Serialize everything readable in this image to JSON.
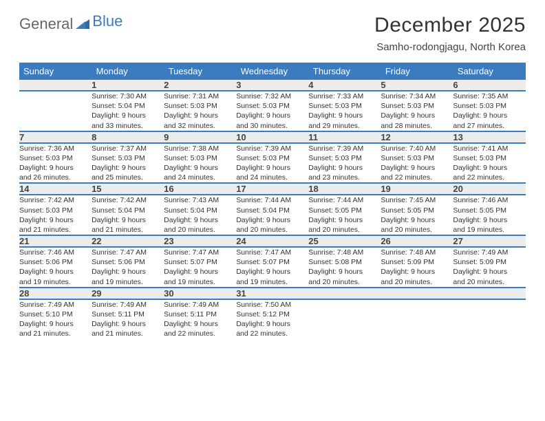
{
  "brand": {
    "word1": "General",
    "word2": "Blue"
  },
  "title": "December 2025",
  "location": "Samho-rodongjagu, North Korea",
  "colors": {
    "header_bg": "#3b7bbf",
    "header_text": "#ffffff",
    "daynum_bg": "#ececec",
    "rule": "#3b7bbf",
    "logo_blue": "#3b7bbf",
    "logo_gray": "#666"
  },
  "weekdays": [
    "Sunday",
    "Monday",
    "Tuesday",
    "Wednesday",
    "Thursday",
    "Friday",
    "Saturday"
  ],
  "weeks": [
    {
      "nums": [
        "",
        "1",
        "2",
        "3",
        "4",
        "5",
        "6"
      ],
      "cells": [
        null,
        {
          "sunrise": "Sunrise: 7:30 AM",
          "sunset": "Sunset: 5:04 PM",
          "day1": "Daylight: 9 hours",
          "day2": "and 33 minutes."
        },
        {
          "sunrise": "Sunrise: 7:31 AM",
          "sunset": "Sunset: 5:03 PM",
          "day1": "Daylight: 9 hours",
          "day2": "and 32 minutes."
        },
        {
          "sunrise": "Sunrise: 7:32 AM",
          "sunset": "Sunset: 5:03 PM",
          "day1": "Daylight: 9 hours",
          "day2": "and 30 minutes."
        },
        {
          "sunrise": "Sunrise: 7:33 AM",
          "sunset": "Sunset: 5:03 PM",
          "day1": "Daylight: 9 hours",
          "day2": "and 29 minutes."
        },
        {
          "sunrise": "Sunrise: 7:34 AM",
          "sunset": "Sunset: 5:03 PM",
          "day1": "Daylight: 9 hours",
          "day2": "and 28 minutes."
        },
        {
          "sunrise": "Sunrise: 7:35 AM",
          "sunset": "Sunset: 5:03 PM",
          "day1": "Daylight: 9 hours",
          "day2": "and 27 minutes."
        }
      ]
    },
    {
      "nums": [
        "7",
        "8",
        "9",
        "10",
        "11",
        "12",
        "13"
      ],
      "cells": [
        {
          "sunrise": "Sunrise: 7:36 AM",
          "sunset": "Sunset: 5:03 PM",
          "day1": "Daylight: 9 hours",
          "day2": "and 26 minutes."
        },
        {
          "sunrise": "Sunrise: 7:37 AM",
          "sunset": "Sunset: 5:03 PM",
          "day1": "Daylight: 9 hours",
          "day2": "and 25 minutes."
        },
        {
          "sunrise": "Sunrise: 7:38 AM",
          "sunset": "Sunset: 5:03 PM",
          "day1": "Daylight: 9 hours",
          "day2": "and 24 minutes."
        },
        {
          "sunrise": "Sunrise: 7:39 AM",
          "sunset": "Sunset: 5:03 PM",
          "day1": "Daylight: 9 hours",
          "day2": "and 24 minutes."
        },
        {
          "sunrise": "Sunrise: 7:39 AM",
          "sunset": "Sunset: 5:03 PM",
          "day1": "Daylight: 9 hours",
          "day2": "and 23 minutes."
        },
        {
          "sunrise": "Sunrise: 7:40 AM",
          "sunset": "Sunset: 5:03 PM",
          "day1": "Daylight: 9 hours",
          "day2": "and 22 minutes."
        },
        {
          "sunrise": "Sunrise: 7:41 AM",
          "sunset": "Sunset: 5:03 PM",
          "day1": "Daylight: 9 hours",
          "day2": "and 22 minutes."
        }
      ]
    },
    {
      "nums": [
        "14",
        "15",
        "16",
        "17",
        "18",
        "19",
        "20"
      ],
      "cells": [
        {
          "sunrise": "Sunrise: 7:42 AM",
          "sunset": "Sunset: 5:03 PM",
          "day1": "Daylight: 9 hours",
          "day2": "and 21 minutes."
        },
        {
          "sunrise": "Sunrise: 7:42 AM",
          "sunset": "Sunset: 5:04 PM",
          "day1": "Daylight: 9 hours",
          "day2": "and 21 minutes."
        },
        {
          "sunrise": "Sunrise: 7:43 AM",
          "sunset": "Sunset: 5:04 PM",
          "day1": "Daylight: 9 hours",
          "day2": "and 20 minutes."
        },
        {
          "sunrise": "Sunrise: 7:44 AM",
          "sunset": "Sunset: 5:04 PM",
          "day1": "Daylight: 9 hours",
          "day2": "and 20 minutes."
        },
        {
          "sunrise": "Sunrise: 7:44 AM",
          "sunset": "Sunset: 5:05 PM",
          "day1": "Daylight: 9 hours",
          "day2": "and 20 minutes."
        },
        {
          "sunrise": "Sunrise: 7:45 AM",
          "sunset": "Sunset: 5:05 PM",
          "day1": "Daylight: 9 hours",
          "day2": "and 20 minutes."
        },
        {
          "sunrise": "Sunrise: 7:46 AM",
          "sunset": "Sunset: 5:05 PM",
          "day1": "Daylight: 9 hours",
          "day2": "and 19 minutes."
        }
      ]
    },
    {
      "nums": [
        "21",
        "22",
        "23",
        "24",
        "25",
        "26",
        "27"
      ],
      "cells": [
        {
          "sunrise": "Sunrise: 7:46 AM",
          "sunset": "Sunset: 5:06 PM",
          "day1": "Daylight: 9 hours",
          "day2": "and 19 minutes."
        },
        {
          "sunrise": "Sunrise: 7:47 AM",
          "sunset": "Sunset: 5:06 PM",
          "day1": "Daylight: 9 hours",
          "day2": "and 19 minutes."
        },
        {
          "sunrise": "Sunrise: 7:47 AM",
          "sunset": "Sunset: 5:07 PM",
          "day1": "Daylight: 9 hours",
          "day2": "and 19 minutes."
        },
        {
          "sunrise": "Sunrise: 7:47 AM",
          "sunset": "Sunset: 5:07 PM",
          "day1": "Daylight: 9 hours",
          "day2": "and 19 minutes."
        },
        {
          "sunrise": "Sunrise: 7:48 AM",
          "sunset": "Sunset: 5:08 PM",
          "day1": "Daylight: 9 hours",
          "day2": "and 20 minutes."
        },
        {
          "sunrise": "Sunrise: 7:48 AM",
          "sunset": "Sunset: 5:09 PM",
          "day1": "Daylight: 9 hours",
          "day2": "and 20 minutes."
        },
        {
          "sunrise": "Sunrise: 7:49 AM",
          "sunset": "Sunset: 5:09 PM",
          "day1": "Daylight: 9 hours",
          "day2": "and 20 minutes."
        }
      ]
    },
    {
      "nums": [
        "28",
        "29",
        "30",
        "31",
        "",
        "",
        ""
      ],
      "cells": [
        {
          "sunrise": "Sunrise: 7:49 AM",
          "sunset": "Sunset: 5:10 PM",
          "day1": "Daylight: 9 hours",
          "day2": "and 21 minutes."
        },
        {
          "sunrise": "Sunrise: 7:49 AM",
          "sunset": "Sunset: 5:11 PM",
          "day1": "Daylight: 9 hours",
          "day2": "and 21 minutes."
        },
        {
          "sunrise": "Sunrise: 7:49 AM",
          "sunset": "Sunset: 5:11 PM",
          "day1": "Daylight: 9 hours",
          "day2": "and 22 minutes."
        },
        {
          "sunrise": "Sunrise: 7:50 AM",
          "sunset": "Sunset: 5:12 PM",
          "day1": "Daylight: 9 hours",
          "day2": "and 22 minutes."
        },
        null,
        null,
        null
      ]
    }
  ]
}
